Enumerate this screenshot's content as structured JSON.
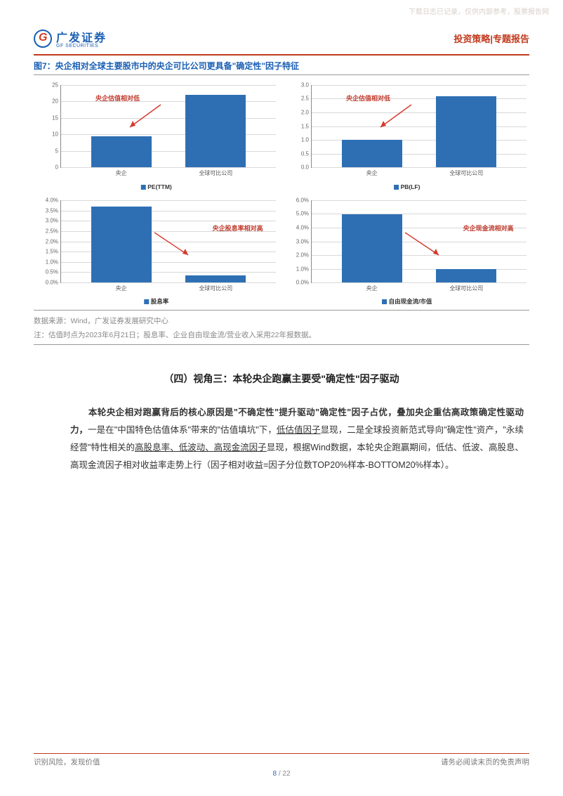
{
  "watermark": "下载日志已记录，仅供内部参考，股票报告网",
  "logo": {
    "cn": "广发证券",
    "en": "GF SECURITIES"
  },
  "header_right": "投资策略|专题报告",
  "figure_title": "图7：央企相对全球主要股市中的央企可比公司更具备\"确定性\"因子特征",
  "bar_color": "#2e6fb4",
  "grid_color": "#d8d8d8",
  "annot_color": "#c0392b",
  "arrow_color": "#d63a2e",
  "cat_labels": {
    "a": "央企",
    "b": "全球可比公司"
  },
  "charts": {
    "tl": {
      "legend": "PE(TTM)",
      "ymax": 25,
      "ystep": 5,
      "yfmt": "int",
      "a": 9.5,
      "b": 22,
      "annot": "央企估值相对低",
      "annot_side": "top"
    },
    "tr": {
      "legend": "PB(LF)",
      "ymax": 3,
      "ystep": 0.5,
      "yfmt": "dec1",
      "a": 1.0,
      "b": 2.6,
      "annot": "央企估值相对低",
      "annot_side": "top"
    },
    "bl": {
      "legend": "股息率",
      "ymax": 4.0,
      "ystep": 0.5,
      "yfmt": "pct1",
      "a": 3.7,
      "b": 0.35,
      "annot": "央企股息率相对高",
      "annot_side": "bottom"
    },
    "br": {
      "legend": "自由现金流/市值",
      "ymax": 6.0,
      "ystep": 1.0,
      "yfmt": "pct1",
      "a": 5.0,
      "b": 0.95,
      "annot": "央企现金流相对高",
      "annot_side": "bottom"
    }
  },
  "source_lines": [
    "数据来源：Wind，广发证券发展研究中心",
    "注：估值时点为2023年6月21日；股息率、企业自由现金流/营业收入采用22年报数据。"
  ],
  "section_title": "（四）视角三：本轮央企跑赢主要受\"确定性\"因子驱动",
  "body": {
    "lead_bold": "本轮央企相对跑赢背后的核心原因是\"不确定性\"提升驱动\"确定性\"因子占优，叠加央企重估高政策确定性驱动力，",
    "p1": "一是在\"中国特色估值体系\"带来的\"估值填坑\"下，",
    "u1": "低估值因子",
    "p2": "显现，二是全球投资新范式导向\"确定性\"资产，\"永续经营\"特性相关的",
    "u2": "高股息率、低波动、高现金流因子",
    "p3": "显现，根据Wind数据，本轮央企跑赢期间，低估、低波、高股息、高现金流因子相对收益率走势上行（因子相对收益=因子分位数TOP20%样本-BOTTOM20%样本）。"
  },
  "footer": {
    "left": "识别风险，发现价值",
    "right": "请务必阅读末页的免责声明",
    "page": "8",
    "total": "22"
  }
}
